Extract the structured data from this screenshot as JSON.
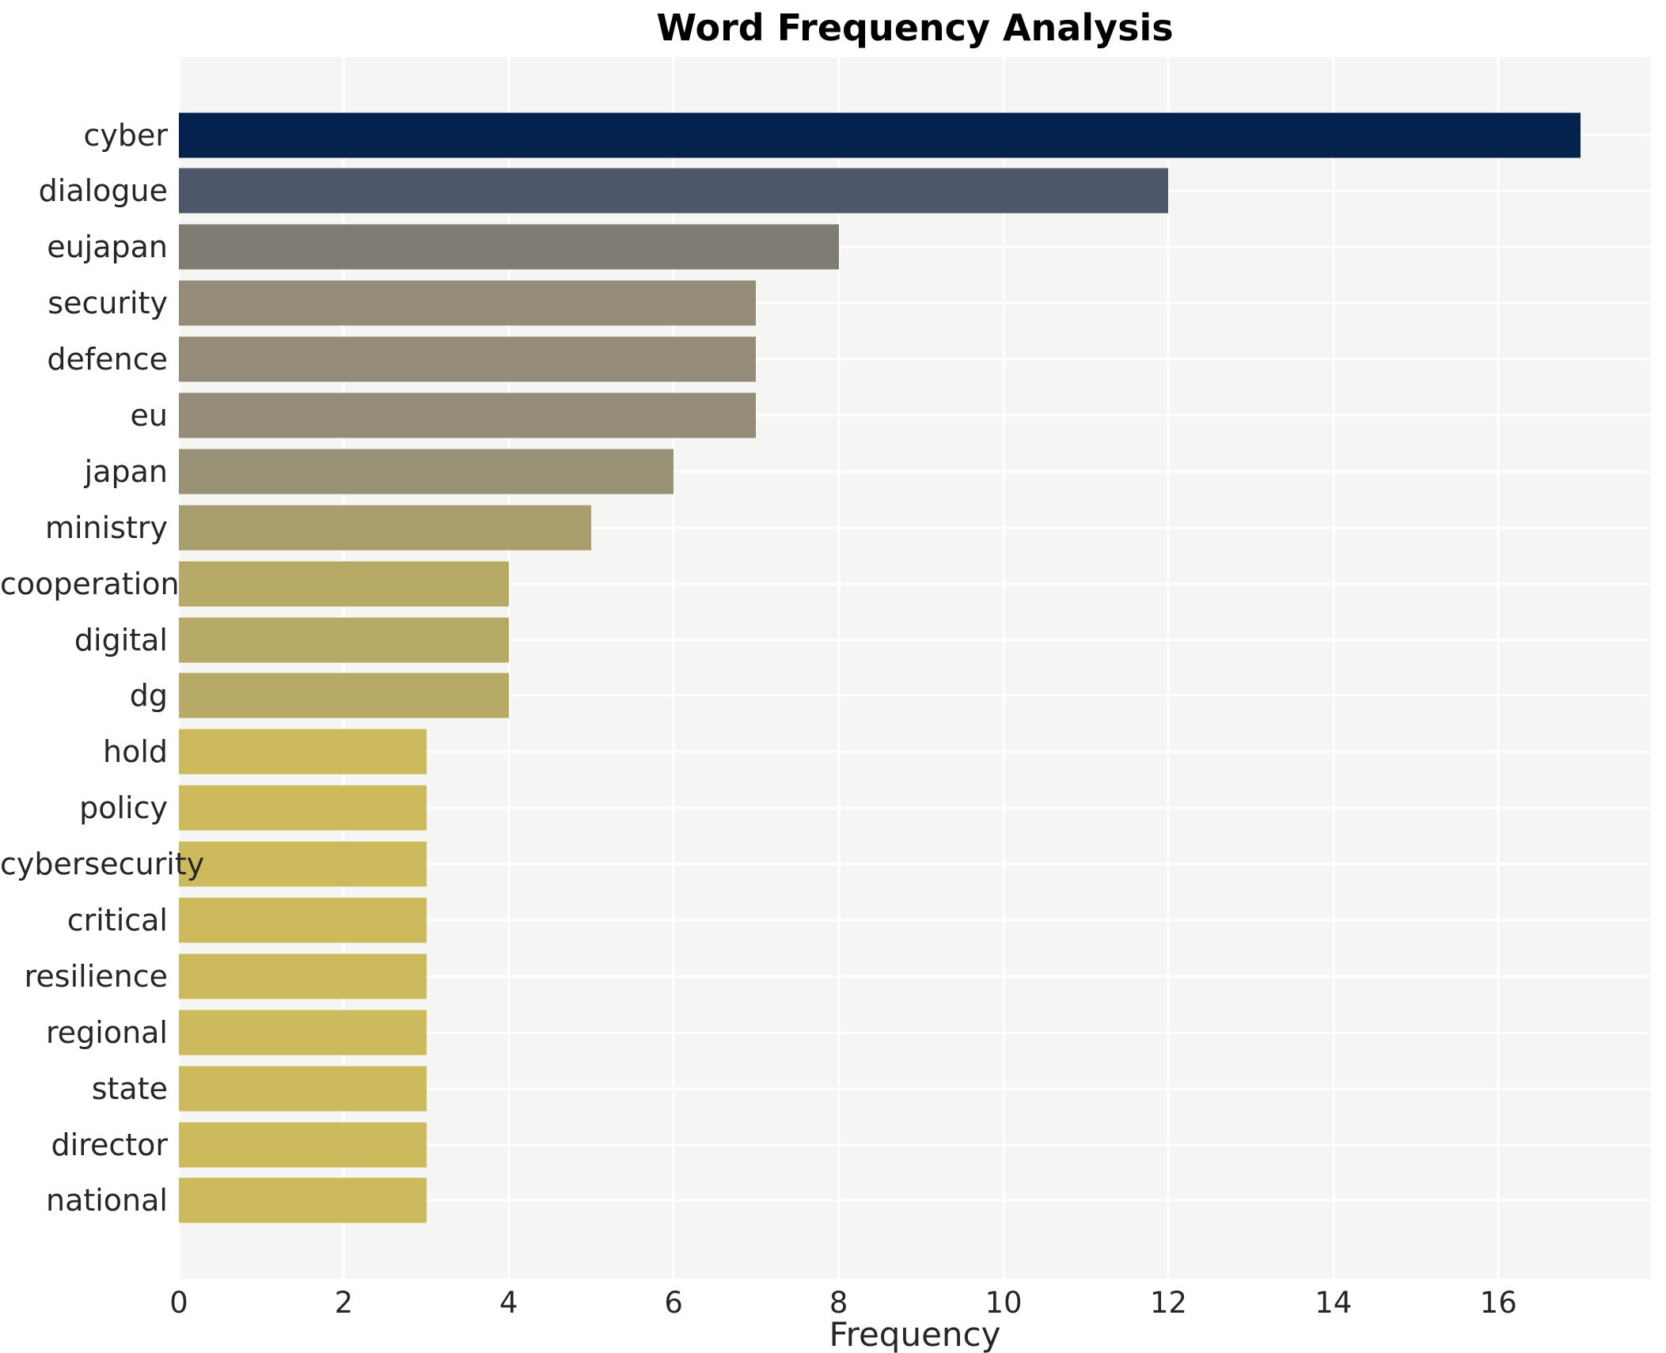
{
  "chart_data": {
    "type": "bar",
    "orientation": "horizontal",
    "title": "Word Frequency Analysis",
    "xlabel": "Frequency",
    "ylabel": "",
    "categories": [
      "cyber",
      "dialogue",
      "eujapan",
      "security",
      "defence",
      "eu",
      "japan",
      "ministry",
      "cooperation",
      "digital",
      "dg",
      "hold",
      "policy",
      "cybersecurity",
      "critical",
      "resilience",
      "regional",
      "state",
      "director",
      "national"
    ],
    "values": [
      17,
      12,
      8,
      7,
      7,
      7,
      6,
      5,
      4,
      4,
      4,
      3,
      3,
      3,
      3,
      3,
      3,
      3,
      3,
      3
    ],
    "bar_colors": [
      "#03224e",
      "#4e5669",
      "#7f7c73",
      "#948c78",
      "#948c78",
      "#948c78",
      "#9a9277",
      "#a89e6e",
      "#b6aa66",
      "#b6aa66",
      "#b6aa66",
      "#ccba5d",
      "#ccba5d",
      "#ccba5d",
      "#ccba5d",
      "#ccba5d",
      "#ccba5d",
      "#ccba5d",
      "#ccba5d",
      "#ccba5d"
    ],
    "xticks": [
      0,
      2,
      4,
      6,
      8,
      10,
      12,
      14,
      16
    ],
    "xlim": [
      0,
      17.85
    ],
    "grid": true,
    "legend": "none",
    "plot_background": "#f5f5f4",
    "grid_color": "#ffffff"
  }
}
